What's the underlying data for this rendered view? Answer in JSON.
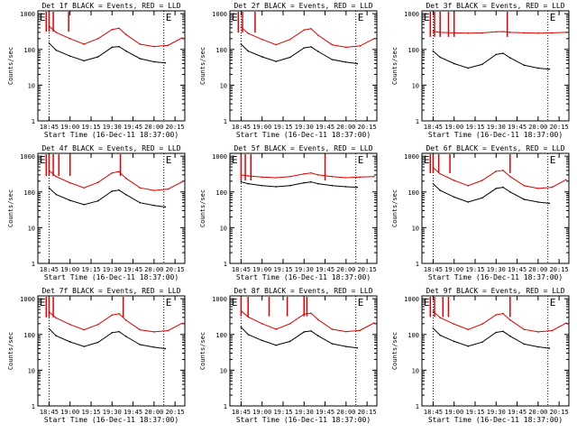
{
  "background": "#ffffff",
  "colors": {
    "events": "#000000",
    "lld": "#e00000",
    "axes": "#000000"
  },
  "chart_data": [
    {
      "type": "line",
      "title": "Det 1f BLACK = Events, RED = LLD",
      "xlabel": "Start Time (16-Dec-11 18:37:00)",
      "ylabel": "Counts/sec",
      "x_tick_labels": [
        "18:45",
        "19:00",
        "19:15",
        "19:30",
        "19:45",
        "20:00",
        "20:15"
      ],
      "y_tick_labels": [
        "1",
        "10",
        "100",
        "1000"
      ],
      "y_scale": "log",
      "ylim": [
        1,
        1200
      ],
      "xlim": [
        "18:37",
        "20:22"
      ],
      "markers": [
        "E",
        "E"
      ],
      "dotted_lines_x": [
        "18:45",
        "20:07"
      ],
      "series": [
        {
          "name": "Events",
          "color": "#000000",
          "x": [
            "18:45",
            "18:50",
            "19:00",
            "19:10",
            "19:20",
            "19:30",
            "19:35",
            "19:40",
            "19:50",
            "20:00",
            "20:08"
          ],
          "values": [
            150,
            95,
            65,
            48,
            62,
            115,
            120,
            90,
            55,
            45,
            42
          ]
        },
        {
          "name": "LLD",
          "color": "#e00000",
          "x": [
            "18:45",
            "18:50",
            "19:00",
            "19:10",
            "19:20",
            "19:30",
            "19:35",
            "19:40",
            "19:50",
            "20:00",
            "20:10",
            "20:20"
          ],
          "values": [
            450,
            300,
            200,
            140,
            200,
            360,
            390,
            260,
            140,
            120,
            130,
            210
          ],
          "spikes_x": [
            "18:43",
            "18:45",
            "18:48",
            "18:59"
          ]
        }
      ]
    },
    {
      "type": "line",
      "title": "Det 2f BLACK = Events, RED = LLD",
      "xlabel": "Start Time (16-Dec-11 18:37:00)",
      "ylabel": "Counts/sec",
      "x_tick_labels": [
        "18:45",
        "19:00",
        "19:15",
        "19:30",
        "19:45",
        "20:00",
        "20:15"
      ],
      "y_tick_labels": [
        "1",
        "10",
        "100",
        "1000"
      ],
      "y_scale": "log",
      "ylim": [
        1,
        1200
      ],
      "xlim": [
        "18:37",
        "20:22"
      ],
      "markers": [
        "E",
        "E"
      ],
      "dotted_lines_x": [
        "18:45",
        "20:07"
      ],
      "series": [
        {
          "name": "Events",
          "color": "#000000",
          "x": [
            "18:45",
            "18:50",
            "19:00",
            "19:10",
            "19:20",
            "19:30",
            "19:35",
            "19:40",
            "19:50",
            "20:00",
            "20:08"
          ],
          "values": [
            140,
            90,
            62,
            46,
            60,
            110,
            118,
            88,
            52,
            44,
            40
          ]
        },
        {
          "name": "LLD",
          "color": "#e00000",
          "x": [
            "18:45",
            "18:50",
            "19:00",
            "19:10",
            "19:20",
            "19:30",
            "19:35",
            "19:40",
            "19:50",
            "20:00",
            "20:10",
            "20:20"
          ],
          "values": [
            420,
            280,
            190,
            135,
            190,
            350,
            380,
            250,
            135,
            115,
            125,
            200
          ],
          "spikes_x": [
            "18:43",
            "18:46",
            "18:55"
          ]
        }
      ]
    },
    {
      "type": "line",
      "title": "Det 3f BLACK = Events, RED = LLD",
      "xlabel": "Start Time (16-Dec-11 18:37:00)",
      "ylabel": "Counts/sec",
      "x_tick_labels": [
        "18:45",
        "19:00",
        "19:15",
        "19:30",
        "19:45",
        "20:00",
        "20:15"
      ],
      "y_tick_labels": [
        "1",
        "10",
        "100",
        "1000"
      ],
      "y_scale": "log",
      "ylim": [
        1,
        1200
      ],
      "xlim": [
        "18:37",
        "20:22"
      ],
      "markers": [
        "E",
        "E"
      ],
      "dotted_lines_x": [
        "18:45",
        "20:07"
      ],
      "series": [
        {
          "name": "Events",
          "color": "#000000",
          "x": [
            "18:45",
            "18:50",
            "19:00",
            "19:10",
            "19:20",
            "19:30",
            "19:35",
            "19:40",
            "19:50",
            "20:00",
            "20:08"
          ],
          "values": [
            90,
            60,
            40,
            30,
            38,
            72,
            78,
            58,
            36,
            30,
            28
          ]
        },
        {
          "name": "LLD",
          "color": "#e00000",
          "x": [
            "18:45",
            "18:50",
            "19:00",
            "19:10",
            "19:20",
            "19:30",
            "19:35",
            "19:40",
            "19:50",
            "20:00",
            "20:10",
            "20:20"
          ],
          "values": [
            320,
            300,
            290,
            285,
            290,
            310,
            315,
            300,
            290,
            285,
            290,
            300
          ],
          "spikes_x": [
            "18:43",
            "18:46",
            "18:50",
            "18:56",
            "19:00",
            "19:38"
          ]
        }
      ]
    },
    {
      "type": "line",
      "title": "Det 4f BLACK = Events, RED = LLD",
      "xlabel": "Start Time (16-Dec-11 18:37:00)",
      "ylabel": "Counts/sec",
      "x_tick_labels": [
        "18:45",
        "19:00",
        "19:15",
        "19:30",
        "19:45",
        "20:00",
        "20:15"
      ],
      "y_tick_labels": [
        "1",
        "10",
        "100",
        "1000"
      ],
      "y_scale": "log",
      "ylim": [
        1,
        1200
      ],
      "xlim": [
        "18:37",
        "20:22"
      ],
      "markers": [
        "E",
        "E"
      ],
      "dotted_lines_x": [
        "18:45",
        "20:07"
      ],
      "series": [
        {
          "name": "Events",
          "color": "#000000",
          "x": [
            "18:45",
            "18:50",
            "19:00",
            "19:10",
            "19:20",
            "19:30",
            "19:35",
            "19:40",
            "19:50",
            "20:00",
            "20:08"
          ],
          "values": [
            130,
            85,
            58,
            44,
            56,
            105,
            112,
            84,
            50,
            42,
            38
          ]
        },
        {
          "name": "LLD",
          "color": "#e00000",
          "x": [
            "18:45",
            "18:50",
            "19:00",
            "19:10",
            "19:20",
            "19:30",
            "19:35",
            "19:40",
            "19:50",
            "20:00",
            "20:10",
            "20:20"
          ],
          "values": [
            400,
            270,
            180,
            130,
            185,
            340,
            370,
            240,
            130,
            110,
            120,
            190
          ],
          "spikes_x": [
            "18:43",
            "18:45",
            "18:48",
            "18:52",
            "19:00",
            "19:36"
          ]
        }
      ]
    },
    {
      "type": "line",
      "title": "Det 5f BLACK = Events, RED = LLD",
      "xlabel": "Start Time (16-Dec-11 18:37:00)",
      "ylabel": "Counts/sec",
      "x_tick_labels": [
        "18:45",
        "19:00",
        "19:15",
        "19:30",
        "19:45",
        "20:00",
        "20:15"
      ],
      "y_tick_labels": [
        "1",
        "10",
        "100",
        "1000"
      ],
      "y_scale": "log",
      "ylim": [
        1,
        1200
      ],
      "xlim": [
        "18:37",
        "20:22"
      ],
      "markers": [
        "E",
        "E"
      ],
      "dotted_lines_x": [
        "18:45",
        "20:07"
      ],
      "series": [
        {
          "name": "Events",
          "color": "#000000",
          "x": [
            "18:45",
            "18:50",
            "19:00",
            "19:10",
            "19:20",
            "19:30",
            "19:35",
            "19:40",
            "19:50",
            "20:00",
            "20:08"
          ],
          "values": [
            190,
            170,
            150,
            140,
            150,
            180,
            190,
            170,
            150,
            140,
            135
          ]
        },
        {
          "name": "LLD",
          "color": "#e00000",
          "x": [
            "18:45",
            "18:50",
            "19:00",
            "19:10",
            "19:20",
            "19:30",
            "19:35",
            "19:40",
            "19:50",
            "20:00",
            "20:10",
            "20:20"
          ],
          "values": [
            300,
            280,
            260,
            250,
            270,
            320,
            340,
            300,
            270,
            250,
            260,
            270
          ],
          "spikes_x": [
            "18:45",
            "18:48",
            "18:52",
            "19:45"
          ]
        }
      ]
    },
    {
      "type": "line",
      "title": "Det 6f BLACK = Events, RED = LLD",
      "xlabel": "Start Time (16-Dec-11 18:37:00)",
      "ylabel": "Counts/sec",
      "x_tick_labels": [
        "18:45",
        "19:00",
        "19:15",
        "19:30",
        "19:45",
        "20:00",
        "20:15"
      ],
      "y_tick_labels": [
        "1",
        "10",
        "100",
        "1000"
      ],
      "y_scale": "log",
      "ylim": [
        1,
        1200
      ],
      "xlim": [
        "18:37",
        "20:22"
      ],
      "markers": [
        "E",
        "E"
      ],
      "dotted_lines_x": [
        "18:45",
        "20:07"
      ],
      "series": [
        {
          "name": "Events",
          "color": "#000000",
          "x": [
            "18:45",
            "18:50",
            "19:00",
            "19:10",
            "19:20",
            "19:30",
            "19:35",
            "19:40",
            "19:50",
            "20:00",
            "20:08"
          ],
          "values": [
            170,
            110,
            72,
            52,
            68,
            125,
            135,
            100,
            62,
            52,
            48
          ]
        },
        {
          "name": "LLD",
          "color": "#e00000",
          "x": [
            "18:45",
            "18:50",
            "19:00",
            "19:10",
            "19:20",
            "19:30",
            "19:35",
            "19:40",
            "19:50",
            "20:00",
            "20:10",
            "20:20"
          ],
          "values": [
            480,
            320,
            210,
            150,
            210,
            380,
            400,
            270,
            150,
            125,
            135,
            220
          ],
          "spikes_x": [
            "18:43",
            "18:45",
            "18:49",
            "18:57",
            "19:40"
          ]
        }
      ]
    },
    {
      "type": "line",
      "title": "Det 7f BLACK = Events, RED = LLD",
      "xlabel": "Start Time (16-Dec-11 18:37:00)",
      "ylabel": "Counts/sec",
      "x_tick_labels": [
        "18:45",
        "19:00",
        "19:15",
        "19:30",
        "19:45",
        "20:00",
        "20:15"
      ],
      "y_tick_labels": [
        "1",
        "10",
        "100",
        "1000"
      ],
      "y_scale": "log",
      "ylim": [
        1,
        1200
      ],
      "xlim": [
        "18:37",
        "20:22"
      ],
      "markers": [
        "E",
        "E"
      ],
      "dotted_lines_x": [
        "18:45",
        "20:07"
      ],
      "series": [
        {
          "name": "Events",
          "color": "#000000",
          "x": [
            "18:45",
            "18:50",
            "19:00",
            "19:10",
            "19:20",
            "19:30",
            "19:35",
            "19:40",
            "19:50",
            "20:00",
            "20:08"
          ],
          "values": [
            145,
            92,
            62,
            46,
            60,
            112,
            120,
            88,
            52,
            44,
            40
          ]
        },
        {
          "name": "LLD",
          "color": "#e00000",
          "x": [
            "18:45",
            "18:50",
            "19:00",
            "19:10",
            "19:20",
            "19:30",
            "19:35",
            "19:40",
            "19:50",
            "20:00",
            "20:10",
            "20:20"
          ],
          "values": [
            430,
            290,
            190,
            135,
            190,
            350,
            380,
            250,
            135,
            118,
            128,
            205
          ],
          "spikes_x": [
            "18:43",
            "18:45",
            "18:48",
            "19:38"
          ]
        }
      ]
    },
    {
      "type": "line",
      "title": "Det 8f BLACK = Events, RED = LLD",
      "xlabel": "Start Time (16-Dec-11 18:37:00)",
      "ylabel": "Counts/sec",
      "x_tick_labels": [
        "18:45",
        "19:00",
        "19:15",
        "19:30",
        "19:45",
        "20:00",
        "20:15"
      ],
      "y_tick_labels": [
        "1",
        "10",
        "100",
        "1000"
      ],
      "y_scale": "log",
      "ylim": [
        1,
        1200
      ],
      "xlim": [
        "18:37",
        "20:22"
      ],
      "markers": [
        "E",
        "E"
      ],
      "dotted_lines_x": [
        "18:45",
        "20:07"
      ],
      "series": [
        {
          "name": "Events",
          "color": "#000000",
          "x": [
            "18:45",
            "18:50",
            "19:00",
            "19:10",
            "19:20",
            "19:30",
            "19:35",
            "19:40",
            "19:50",
            "20:00",
            "20:08"
          ],
          "values": [
            160,
            100,
            68,
            50,
            64,
            118,
            125,
            92,
            55,
            46,
            42
          ]
        },
        {
          "name": "LLD",
          "color": "#e00000",
          "x": [
            "18:45",
            "18:50",
            "19:00",
            "19:10",
            "19:20",
            "19:30",
            "19:35",
            "19:40",
            "19:50",
            "20:00",
            "20:10",
            "20:20"
          ],
          "values": [
            460,
            310,
            200,
            140,
            200,
            370,
            390,
            260,
            140,
            120,
            130,
            210
          ],
          "spikes_x": [
            "18:45",
            "18:50",
            "19:05",
            "19:18",
            "19:30",
            "19:32"
          ]
        }
      ]
    },
    {
      "type": "line",
      "title": "Det 9f BLACK = Events, RED = LLD",
      "xlabel": "Start Time (16-Dec-11 18:37:00)",
      "ylabel": "Counts/sec",
      "x_tick_labels": [
        "18:45",
        "19:00",
        "19:15",
        "19:30",
        "19:45",
        "20:00",
        "20:15"
      ],
      "y_tick_labels": [
        "1",
        "10",
        "100",
        "1000"
      ],
      "y_scale": "log",
      "ylim": [
        1,
        1200
      ],
      "xlim": [
        "18:37",
        "20:22"
      ],
      "markers": [
        "E",
        "E"
      ],
      "dotted_lines_x": [
        "18:45",
        "20:07"
      ],
      "series": [
        {
          "name": "Events",
          "color": "#000000",
          "x": [
            "18:45",
            "18:50",
            "19:00",
            "19:10",
            "19:20",
            "19:30",
            "19:35",
            "19:40",
            "19:50",
            "20:00",
            "20:08"
          ],
          "values": [
            150,
            95,
            64,
            47,
            61,
            114,
            122,
            90,
            54,
            45,
            41
          ]
        },
        {
          "name": "LLD",
          "color": "#e00000",
          "x": [
            "18:45",
            "18:50",
            "19:00",
            "19:10",
            "19:20",
            "19:30",
            "19:35",
            "19:40",
            "19:50",
            "20:00",
            "20:10",
            "20:20"
          ],
          "values": [
            440,
            295,
            195,
            138,
            195,
            355,
            385,
            255,
            138,
            118,
            128,
            208
          ],
          "spikes_x": [
            "18:43",
            "18:46",
            "18:52",
            "18:56",
            "19:40"
          ]
        }
      ]
    }
  ]
}
